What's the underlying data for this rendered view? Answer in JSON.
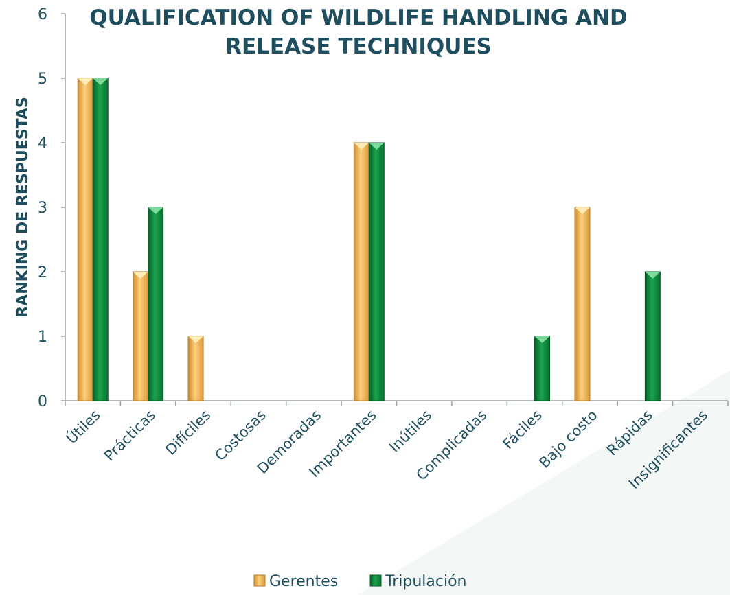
{
  "chart_data": {
    "type": "bar",
    "title_line1": "QUALIFICATION OF WILDLIFE HANDLING AND",
    "title_line2": "RELEASE TECHNIQUES",
    "xlabel": "",
    "ylabel": "RANKING DE RESPUESTAS",
    "ylim": [
      0,
      6
    ],
    "yticks": [
      "0",
      "1",
      "2",
      "3",
      "4",
      "5",
      "6"
    ],
    "grid": false,
    "legend_position": "bottom",
    "categories": [
      "Útiles",
      "Prácticas",
      "Difíciles",
      "Costosas",
      "Demoradas",
      "Importantes",
      "Inútiles",
      "Complicadas",
      "Fáciles",
      "Bajo costo",
      "Rápidas",
      "Insignificantes"
    ],
    "series": [
      {
        "name": "Gerentes",
        "color": "#f0b35a",
        "values": [
          5,
          2,
          1,
          0,
          0,
          4,
          0,
          0,
          0,
          3,
          0,
          0
        ]
      },
      {
        "name": "Tripulación",
        "color": "#0f8a3c",
        "values": [
          5,
          3,
          0,
          0,
          0,
          4,
          0,
          0,
          1,
          0,
          2,
          0
        ]
      }
    ]
  }
}
